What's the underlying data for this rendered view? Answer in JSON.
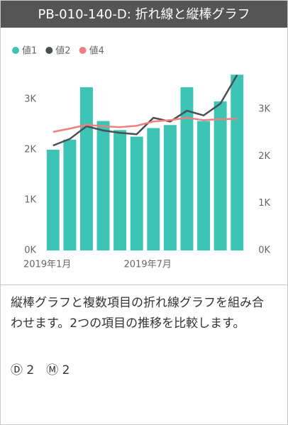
{
  "title": "PB-010-140-D: 折れ線と縦棒グラフ",
  "chart_data": {
    "type": "bar-line",
    "categories": [
      "2019年1月",
      null,
      null,
      null,
      null,
      null,
      "2019年7月",
      null,
      null,
      null,
      null,
      null
    ],
    "series": [
      {
        "name": "値1",
        "color": "#3cc4b4",
        "type": "bar",
        "values": [
          2000,
          2200,
          3240,
          2570,
          2390,
          2260,
          2430,
          2490,
          3240,
          2570,
          2960,
          3490
        ]
      },
      {
        "name": "値2",
        "color": "#4a4f55",
        "type": "line",
        "axis": "y2",
        "values": [
          2230,
          2370,
          2640,
          2550,
          2500,
          2470,
          2820,
          2740,
          2970,
          2870,
          3120,
          3730
        ]
      },
      {
        "name": "値4",
        "color": "#f08080",
        "type": "line",
        "axis": "y2",
        "values": [
          2520,
          2590,
          2670,
          2640,
          2620,
          2650,
          2740,
          2770,
          2820,
          2770,
          2790,
          2800
        ]
      }
    ],
    "ylim": [
      0,
      3550
    ],
    "yticks": [
      {
        "value": 0,
        "label": "0K"
      },
      {
        "value": 1000,
        "label": "1K"
      },
      {
        "value": 2000,
        "label": "2K"
      },
      {
        "value": 3000,
        "label": "3K"
      }
    ],
    "y2lim": [
      0,
      3800
    ],
    "y2ticks": [
      {
        "value": 0,
        "label": "0K"
      },
      {
        "value": 1000,
        "label": "1K"
      },
      {
        "value": 2000,
        "label": "2K"
      },
      {
        "value": 3000,
        "label": "3K"
      }
    ],
    "legend": "top-left"
  },
  "description": "縦棒グラフと複数項目の折れ線グラフを組み合わせます。2つの項目の推移を比較します。",
  "footer": "Ⓓ 2　Ⓜ 2"
}
